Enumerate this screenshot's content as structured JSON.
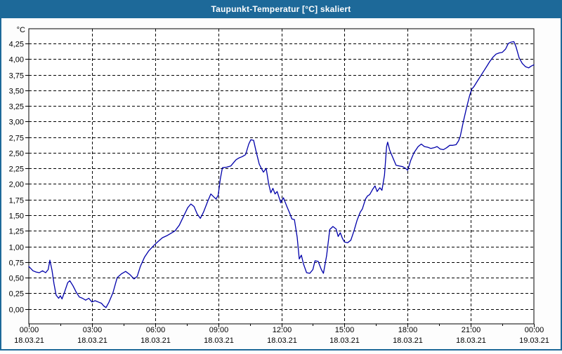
{
  "window": {
    "title": "Taupunkt-Temperatur [°C] skaliert"
  },
  "colors": {
    "titlebar_bg": "#1d6999",
    "window_border": "#1d6999",
    "line": "#0000aa",
    "grid": "#000000",
    "plot_bg": "#ffffff",
    "text": "#000000"
  },
  "chart_data": {
    "type": "line",
    "title": "Taupunkt-Temperatur [°C] skaliert",
    "unit_label": "°C",
    "grid": "dashed",
    "legend": "none",
    "y_axis": {
      "min": 0,
      "max": 4.25,
      "step": 0.25,
      "decimal_separator": ",",
      "tick_labels": [
        "0,00",
        "0,25",
        "0,50",
        "0,75",
        "1,00",
        "1,25",
        "1,50",
        "1,75",
        "2,00",
        "2,25",
        "2,50",
        "2,75",
        "3,00",
        "3,25",
        "3,50",
        "3,75",
        "4,00",
        "4,25"
      ]
    },
    "x_axis": {
      "range_hours": [
        0,
        24
      ],
      "major_tick_hours": 3,
      "minor_tick_hours": 1.5,
      "ticks": [
        {
          "time": "00:00",
          "date": "18.03.21"
        },
        {
          "time": "03:00",
          "date": "18.03.21"
        },
        {
          "time": "06:00",
          "date": "18.03.21"
        },
        {
          "time": "09:00",
          "date": "18.03.21"
        },
        {
          "time": "12:00",
          "date": "18.03.21"
        },
        {
          "time": "15:00",
          "date": "18.03.21"
        },
        {
          "time": "18:00",
          "date": "18.03.21"
        },
        {
          "time": "21:00",
          "date": "18.03.21"
        },
        {
          "time": "00:00",
          "date": "19.03.21"
        }
      ]
    },
    "series": [
      {
        "color": "#0000aa",
        "points": [
          [
            0.0,
            0.68
          ],
          [
            0.2,
            0.61
          ],
          [
            0.35,
            0.59
          ],
          [
            0.5,
            0.58
          ],
          [
            0.65,
            0.61
          ],
          [
            0.8,
            0.58
          ],
          [
            0.92,
            0.63
          ],
          [
            1.0,
            0.78
          ],
          [
            1.1,
            0.62
          ],
          [
            1.2,
            0.4
          ],
          [
            1.3,
            0.22
          ],
          [
            1.42,
            0.17
          ],
          [
            1.5,
            0.21
          ],
          [
            1.58,
            0.16
          ],
          [
            1.7,
            0.27
          ],
          [
            1.85,
            0.42
          ],
          [
            1.95,
            0.45
          ],
          [
            2.1,
            0.37
          ],
          [
            2.25,
            0.27
          ],
          [
            2.4,
            0.19
          ],
          [
            2.55,
            0.17
          ],
          [
            2.7,
            0.14
          ],
          [
            2.85,
            0.17
          ],
          [
            3.0,
            0.11
          ],
          [
            3.15,
            0.13
          ],
          [
            3.3,
            0.11
          ],
          [
            3.45,
            0.09
          ],
          [
            3.55,
            0.05
          ],
          [
            3.67,
            0.02
          ],
          [
            3.8,
            0.1
          ],
          [
            4.0,
            0.26
          ],
          [
            4.2,
            0.5
          ],
          [
            4.4,
            0.56
          ],
          [
            4.6,
            0.6
          ],
          [
            4.8,
            0.55
          ],
          [
            5.0,
            0.48
          ],
          [
            5.15,
            0.52
          ],
          [
            5.3,
            0.68
          ],
          [
            5.5,
            0.83
          ],
          [
            5.7,
            0.93
          ],
          [
            5.95,
            1.02
          ],
          [
            6.15,
            1.08
          ],
          [
            6.35,
            1.14
          ],
          [
            6.55,
            1.17
          ],
          [
            6.75,
            1.21
          ],
          [
            6.95,
            1.25
          ],
          [
            7.15,
            1.34
          ],
          [
            7.35,
            1.48
          ],
          [
            7.55,
            1.62
          ],
          [
            7.7,
            1.68
          ],
          [
            7.85,
            1.64
          ],
          [
            8.0,
            1.52
          ],
          [
            8.15,
            1.45
          ],
          [
            8.3,
            1.55
          ],
          [
            8.5,
            1.72
          ],
          [
            8.65,
            1.84
          ],
          [
            8.8,
            1.79
          ],
          [
            8.9,
            1.76
          ],
          [
            9.0,
            1.82
          ],
          [
            9.1,
            2.08
          ],
          [
            9.2,
            2.26
          ],
          [
            9.4,
            2.27
          ],
          [
            9.6,
            2.29
          ],
          [
            9.75,
            2.35
          ],
          [
            9.85,
            2.39
          ],
          [
            10.0,
            2.42
          ],
          [
            10.15,
            2.44
          ],
          [
            10.3,
            2.47
          ],
          [
            10.45,
            2.64
          ],
          [
            10.55,
            2.71
          ],
          [
            10.68,
            2.7
          ],
          [
            10.8,
            2.52
          ],
          [
            10.95,
            2.32
          ],
          [
            11.05,
            2.25
          ],
          [
            11.15,
            2.19
          ],
          [
            11.28,
            2.25
          ],
          [
            11.4,
            2.0
          ],
          [
            11.5,
            1.86
          ],
          [
            11.6,
            1.93
          ],
          [
            11.7,
            1.84
          ],
          [
            11.8,
            1.88
          ],
          [
            11.97,
            1.7
          ],
          [
            12.1,
            1.78
          ],
          [
            12.25,
            1.65
          ],
          [
            12.4,
            1.53
          ],
          [
            12.5,
            1.44
          ],
          [
            12.62,
            1.43
          ],
          [
            12.75,
            1.15
          ],
          [
            12.85,
            0.8
          ],
          [
            12.95,
            0.86
          ],
          [
            13.05,
            0.72
          ],
          [
            13.2,
            0.58
          ],
          [
            13.35,
            0.57
          ],
          [
            13.5,
            0.63
          ],
          [
            13.6,
            0.77
          ],
          [
            13.75,
            0.76
          ],
          [
            13.9,
            0.63
          ],
          [
            14.0,
            0.57
          ],
          [
            14.15,
            0.85
          ],
          [
            14.3,
            1.27
          ],
          [
            14.45,
            1.32
          ],
          [
            14.6,
            1.28
          ],
          [
            14.7,
            1.16
          ],
          [
            14.8,
            1.22
          ],
          [
            14.9,
            1.13
          ],
          [
            15.0,
            1.07
          ],
          [
            15.15,
            1.06
          ],
          [
            15.3,
            1.1
          ],
          [
            15.45,
            1.25
          ],
          [
            15.6,
            1.42
          ],
          [
            15.75,
            1.55
          ],
          [
            15.85,
            1.6
          ],
          [
            16.0,
            1.76
          ],
          [
            16.1,
            1.81
          ],
          [
            16.2,
            1.83
          ],
          [
            16.35,
            1.92
          ],
          [
            16.45,
            1.97
          ],
          [
            16.55,
            1.88
          ],
          [
            16.68,
            1.94
          ],
          [
            16.78,
            1.9
          ],
          [
            16.9,
            2.14
          ],
          [
            17.0,
            2.6
          ],
          [
            17.05,
            2.67
          ],
          [
            17.15,
            2.54
          ],
          [
            17.3,
            2.42
          ],
          [
            17.45,
            2.3
          ],
          [
            17.6,
            2.29
          ],
          [
            17.75,
            2.28
          ],
          [
            17.9,
            2.25
          ],
          [
            18.0,
            2.22
          ],
          [
            18.15,
            2.38
          ],
          [
            18.3,
            2.5
          ],
          [
            18.5,
            2.6
          ],
          [
            18.65,
            2.64
          ],
          [
            18.8,
            2.6
          ],
          [
            18.95,
            2.59
          ],
          [
            19.1,
            2.57
          ],
          [
            19.25,
            2.58
          ],
          [
            19.4,
            2.6
          ],
          [
            19.55,
            2.56
          ],
          [
            19.7,
            2.55
          ],
          [
            19.85,
            2.58
          ],
          [
            20.0,
            2.62
          ],
          [
            20.15,
            2.62
          ],
          [
            20.3,
            2.63
          ],
          [
            20.42,
            2.69
          ],
          [
            20.5,
            2.76
          ],
          [
            20.65,
            3.0
          ],
          [
            20.8,
            3.22
          ],
          [
            20.95,
            3.42
          ],
          [
            21.05,
            3.52
          ],
          [
            21.15,
            3.56
          ],
          [
            21.3,
            3.64
          ],
          [
            21.45,
            3.72
          ],
          [
            21.6,
            3.8
          ],
          [
            21.75,
            3.88
          ],
          [
            21.9,
            3.96
          ],
          [
            22.05,
            4.03
          ],
          [
            22.2,
            4.08
          ],
          [
            22.35,
            4.1
          ],
          [
            22.5,
            4.11
          ],
          [
            22.65,
            4.16
          ],
          [
            22.78,
            4.25
          ],
          [
            22.9,
            4.27
          ],
          [
            23.05,
            4.28
          ],
          [
            23.15,
            4.2
          ],
          [
            23.3,
            4.02
          ],
          [
            23.45,
            3.93
          ],
          [
            23.6,
            3.88
          ],
          [
            23.75,
            3.86
          ],
          [
            23.88,
            3.89
          ],
          [
            24.0,
            3.91
          ]
        ]
      }
    ]
  }
}
